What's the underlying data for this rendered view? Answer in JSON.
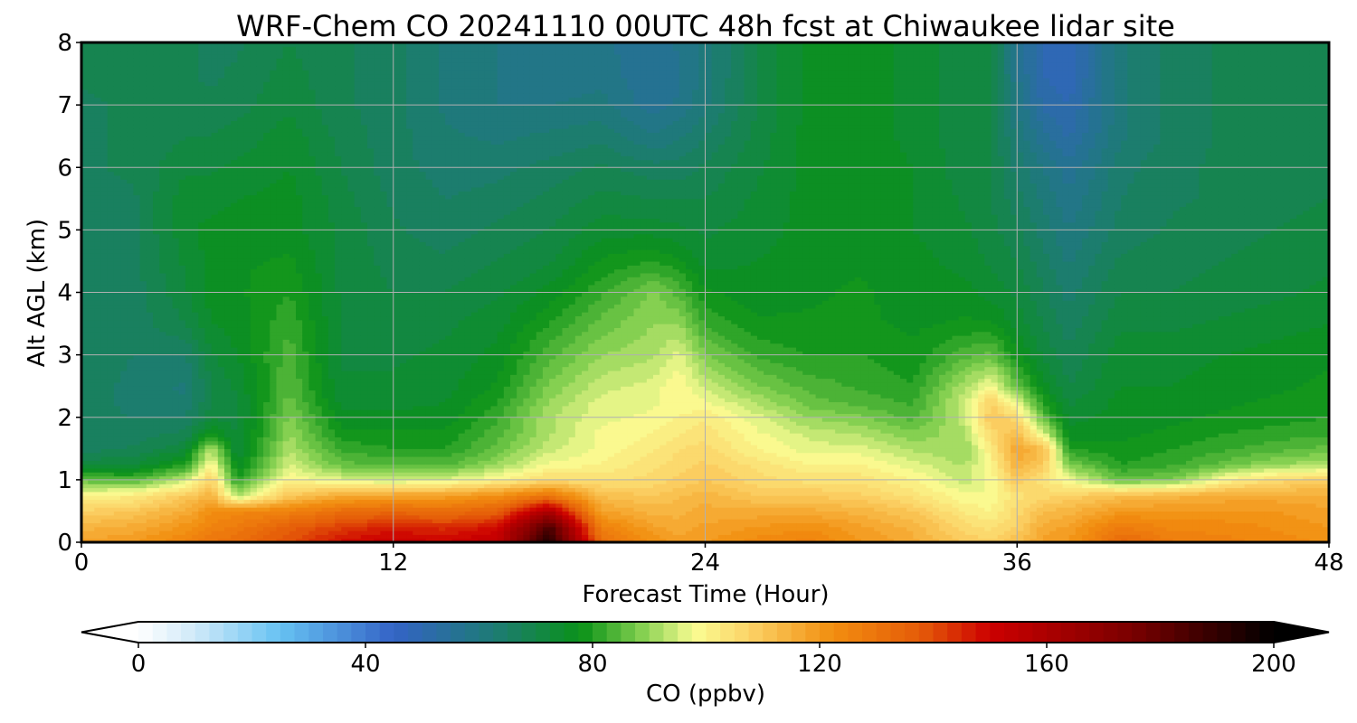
{
  "chart_data": {
    "type": "heatmap",
    "title": "WRF-Chem CO  20241110 00UTC 48h fcst at Chiwaukee lidar site",
    "xlabel": "Forecast Time (Hour)",
    "ylabel": "Alt AGL (km)",
    "xlim": [
      0,
      48
    ],
    "ylim": [
      0,
      8
    ],
    "xticks": [
      0,
      12,
      24,
      36,
      48
    ],
    "yticks": [
      0,
      1,
      2,
      3,
      4,
      5,
      6,
      7,
      8
    ],
    "grid": true,
    "colorbar": {
      "label": "CO  (ppbv)",
      "min": 0,
      "max": 200,
      "ticks": [
        0,
        40,
        80,
        120,
        160,
        200
      ],
      "extend": "both",
      "stops": [
        {
          "v": 0,
          "c": "#ffffff"
        },
        {
          "v": 10,
          "c": "#cfe9f8"
        },
        {
          "v": 25,
          "c": "#66c2f2"
        },
        {
          "v": 45,
          "c": "#3463c6"
        },
        {
          "v": 62,
          "c": "#1e7a78"
        },
        {
          "v": 78,
          "c": "#0a9218"
        },
        {
          "v": 88,
          "c": "#7ccc4c"
        },
        {
          "v": 98,
          "c": "#fafc92"
        },
        {
          "v": 108,
          "c": "#fbd165"
        },
        {
          "v": 122,
          "c": "#f28f10"
        },
        {
          "v": 138,
          "c": "#e55a08"
        },
        {
          "v": 150,
          "c": "#cc0000"
        },
        {
          "v": 175,
          "c": "#7a0000"
        },
        {
          "v": 200,
          "c": "#000000"
        }
      ]
    },
    "altitudes_km": [
      0,
      0.25,
      0.5,
      0.75,
      1,
      1.25,
      1.5,
      1.75,
      2,
      2.25,
      2.5,
      3,
      3.5,
      4,
      4.5,
      5,
      5.5,
      6,
      6.5,
      7,
      7.5,
      8
    ],
    "profiles": [
      {
        "hour": 0,
        "co": [
          118,
          114,
          108,
          100,
          86,
          72,
          66,
          65,
          66,
          67,
          67,
          67,
          66,
          66,
          66,
          66,
          67,
          67,
          67,
          67,
          68,
          68
        ]
      },
      {
        "hour": 2,
        "co": [
          120,
          116,
          110,
          102,
          84,
          72,
          68,
          66,
          65,
          64,
          64,
          65,
          66,
          66,
          67,
          67,
          67,
          68,
          68,
          68,
          68,
          69
        ]
      },
      {
        "hour": 4,
        "co": [
          125,
          121,
          116,
          110,
          94,
          80,
          72,
          68,
          65,
          63,
          62,
          65,
          70,
          72,
          73,
          74,
          74,
          72,
          70,
          68,
          68,
          68
        ]
      },
      {
        "hour": 5,
        "co": [
          130,
          126,
          122,
          114,
          108,
          100,
          92,
          78,
          72,
          70,
          70,
          72,
          75,
          76,
          76,
          76,
          74,
          72,
          70,
          68,
          67,
          67
        ]
      },
      {
        "hour": 6,
        "co": [
          132,
          128,
          124,
          92,
          80,
          75,
          72,
          72,
          72,
          72,
          73,
          75,
          76,
          77,
          77,
          76,
          75,
          73,
          71,
          69,
          68,
          67
        ]
      },
      {
        "hour": 8,
        "co": [
          140,
          136,
          126,
          110,
          100,
          95,
          92,
          90,
          88,
          86,
          85,
          84,
          82,
          80,
          78,
          76,
          76,
          75,
          74,
          72,
          71,
          70
        ]
      },
      {
        "hour": 10,
        "co": [
          148,
          142,
          132,
          116,
          96,
          86,
          82,
          78,
          76,
          74,
          73,
          72,
          72,
          72,
          72,
          72,
          71,
          70,
          69,
          68,
          68,
          68
        ]
      },
      {
        "hour": 12,
        "co": [
          152,
          146,
          134,
          118,
          94,
          84,
          80,
          78,
          76,
          74,
          73,
          72,
          71,
          70,
          69,
          68,
          67,
          66,
          66,
          66,
          66,
          66
        ]
      },
      {
        "hour": 14,
        "co": [
          150,
          144,
          132,
          118,
          96,
          84,
          80,
          78,
          76,
          75,
          74,
          73,
          72,
          70,
          68,
          66,
          65,
          64,
          63,
          62,
          62,
          62
        ]
      },
      {
        "hour": 16,
        "co": [
          155,
          148,
          136,
          122,
          100,
          90,
          86,
          84,
          82,
          80,
          78,
          76,
          74,
          72,
          70,
          68,
          66,
          64,
          62,
          60,
          60,
          60
        ]
      },
      {
        "hour": 18,
        "co": [
          195,
          185,
          160,
          130,
          106,
          98,
          94,
          92,
          92,
          90,
          88,
          84,
          80,
          76,
          72,
          70,
          68,
          66,
          63,
          60,
          58,
          58
        ]
      },
      {
        "hour": 20,
        "co": [
          132,
          126,
          118,
          112,
          104,
          100,
          98,
          98,
          97,
          96,
          94,
          90,
          86,
          82,
          78,
          74,
          71,
          68,
          64,
          61,
          59,
          58
        ]
      },
      {
        "hour": 22,
        "co": [
          122,
          118,
          114,
          110,
          106,
          104,
          102,
          100,
          98,
          97,
          96,
          92,
          90,
          88,
          80,
          74,
          70,
          66,
          60,
          56,
          55,
          56
        ]
      },
      {
        "hour": 23,
        "co": [
          118,
          116,
          114,
          112,
          108,
          106,
          105,
          102,
          100,
          99,
          100,
          96,
          90,
          84,
          78,
          73,
          70,
          66,
          62,
          58,
          57,
          58
        ]
      },
      {
        "hour": 24,
        "co": [
          120,
          118,
          116,
          114,
          110,
          108,
          106,
          104,
          102,
          98,
          94,
          88,
          82,
          78,
          74,
          72,
          70,
          68,
          65,
          62,
          61,
          61
        ]
      },
      {
        "hour": 26,
        "co": [
          124,
          120,
          116,
          110,
          106,
          104,
          100,
          98,
          96,
          92,
          88,
          82,
          78,
          76,
          75,
          74,
          73,
          72,
          71,
          70,
          70,
          70
        ]
      },
      {
        "hour": 28,
        "co": [
          126,
          122,
          116,
          110,
          104,
          100,
          96,
          94,
          90,
          86,
          84,
          80,
          78,
          77,
          76,
          76,
          76,
          76,
          76,
          76,
          76,
          76
        ]
      },
      {
        "hour": 30,
        "co": [
          120,
          118,
          114,
          108,
          104,
          100,
          96,
          92,
          88,
          84,
          82,
          80,
          78,
          78,
          77,
          77,
          77,
          77,
          77,
          77,
          77,
          77
        ]
      },
      {
        "hour": 32,
        "co": [
          116,
          114,
          110,
          104,
          100,
          96,
          92,
          88,
          84,
          82,
          80,
          78,
          77,
          76,
          76,
          75,
          75,
          75,
          74,
          74,
          74,
          74
        ]
      },
      {
        "hour": 34,
        "co": [
          110,
          106,
          102,
          98,
          94,
          92,
          90,
          92,
          94,
          94,
          92,
          84,
          78,
          76,
          74,
          73,
          72,
          71,
          71,
          71,
          71,
          71
        ]
      },
      {
        "hour": 35,
        "co": [
          108,
          104,
          100,
          98,
          98,
          100,
          102,
          106,
          110,
          108,
          98,
          86,
          78,
          74,
          72,
          71,
          70,
          70,
          70,
          70,
          70,
          70
        ]
      },
      {
        "hour": 36,
        "co": [
          112,
          108,
          106,
          104,
          110,
          115,
          118,
          112,
          106,
          96,
          86,
          78,
          74,
          72,
          70,
          68,
          66,
          64,
          62,
          60,
          58,
          57
        ]
      },
      {
        "hour": 37,
        "co": [
          118,
          116,
          112,
          106,
          104,
          110,
          112,
          96,
          86,
          80,
          76,
          72,
          70,
          68,
          66,
          64,
          62,
          60,
          56,
          52,
          50,
          50
        ]
      },
      {
        "hour": 38,
        "co": [
          120,
          118,
          114,
          108,
          98,
          88,
          80,
          76,
          74,
          72,
          70,
          68,
          66,
          64,
          62,
          60,
          58,
          56,
          52,
          50,
          48,
          48
        ]
      },
      {
        "hour": 40,
        "co": [
          134,
          128,
          120,
          112,
          86,
          80,
          78,
          77,
          76,
          76,
          75,
          74,
          72,
          70,
          68,
          66,
          65,
          64,
          62,
          62,
          62,
          62
        ]
      },
      {
        "hour": 42,
        "co": [
          128,
          124,
          120,
          114,
          88,
          82,
          80,
          78,
          77,
          76,
          75,
          74,
          72,
          70,
          69,
          68,
          67,
          67,
          66,
          66,
          66,
          66
        ]
      },
      {
        "hour": 44,
        "co": [
          126,
          124,
          120,
          116,
          100,
          86,
          82,
          80,
          78,
          77,
          76,
          75,
          73,
          71,
          70,
          69,
          68,
          68,
          68,
          68,
          68,
          68
        ]
      },
      {
        "hour": 46,
        "co": [
          124,
          122,
          120,
          116,
          106,
          90,
          84,
          81,
          79,
          78,
          77,
          76,
          74,
          72,
          71,
          70,
          69,
          69,
          69,
          69,
          69,
          69
        ]
      },
      {
        "hour": 48,
        "co": [
          122,
          120,
          118,
          116,
          108,
          92,
          86,
          82,
          80,
          79,
          78,
          77,
          75,
          73,
          72,
          71,
          70,
          70,
          70,
          70,
          70,
          70
        ]
      }
    ]
  }
}
